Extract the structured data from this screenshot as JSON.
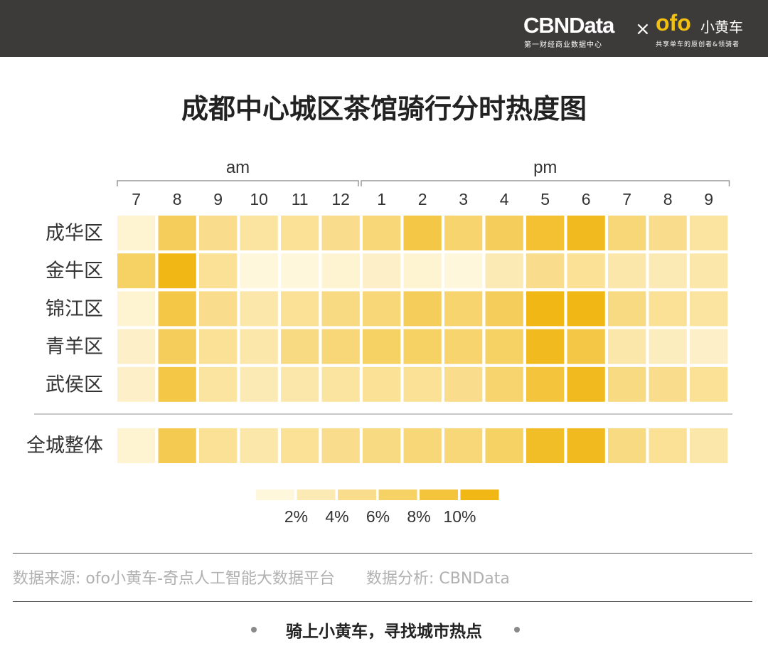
{
  "header": {
    "brand": "CBNData",
    "brand_sub": "第一财经商业数据中心",
    "separator": "×",
    "partner": "ofo",
    "partner_cn": "小黄车",
    "partner_sub": "共享单车的原创者&领骑者"
  },
  "title": "成都中心城区茶馆骑行分时热度图",
  "chart_data": {
    "type": "heatmap",
    "title": "成都中心城区茶馆骑行分时热度图",
    "period_labels": [
      "am",
      "pm"
    ],
    "x": [
      "7",
      "8",
      "9",
      "10",
      "11",
      "12",
      "1",
      "2",
      "3",
      "4",
      "5",
      "6",
      "7",
      "8",
      "9"
    ],
    "rows": [
      "成华区",
      "金牛区",
      "锦江区",
      "青羊区",
      "武侯区"
    ],
    "total_row_label": "全城整体",
    "values": [
      [
        1.5,
        7.5,
        5.0,
        4.0,
        4.5,
        5.0,
        6.0,
        8.5,
        6.5,
        7.5,
        9.5,
        10.5,
        6.0,
        5.0,
        4.0
      ],
      [
        7.0,
        11.0,
        4.5,
        1.0,
        1.0,
        1.5,
        2.0,
        1.5,
        1.0,
        3.0,
        5.0,
        4.5,
        3.5,
        3.0,
        3.5
      ],
      [
        1.5,
        8.5,
        5.0,
        3.5,
        4.5,
        5.5,
        6.0,
        7.5,
        6.5,
        7.5,
        11.0,
        11.0,
        5.5,
        4.5,
        4.0
      ],
      [
        2.0,
        7.5,
        4.5,
        3.5,
        5.5,
        6.0,
        7.0,
        7.0,
        6.5,
        7.0,
        10.5,
        8.5,
        3.5,
        2.5,
        2.0
      ],
      [
        2.0,
        8.5,
        4.0,
        3.0,
        3.5,
        4.0,
        4.5,
        4.5,
        5.0,
        6.5,
        9.0,
        10.5,
        5.5,
        5.0,
        4.5
      ]
    ],
    "total_values": [
      1.5,
      8.0,
      4.5,
      3.5,
      4.5,
      5.0,
      5.5,
      6.0,
      6.0,
      7.0,
      10.0,
      10.5,
      5.5,
      4.5,
      3.5
    ],
    "legend_ticks": [
      "2%",
      "4%",
      "6%",
      "8%",
      "10%"
    ],
    "colors": {
      "low": "#fffae6",
      "high": "#f0b40a"
    }
  },
  "footer": {
    "source": "数据来源: ofo小黄车-奇点人工智能大数据平台",
    "analysis": "数据分析: CBNData",
    "slogan": "骑上小黄车，寻找城市热点"
  }
}
